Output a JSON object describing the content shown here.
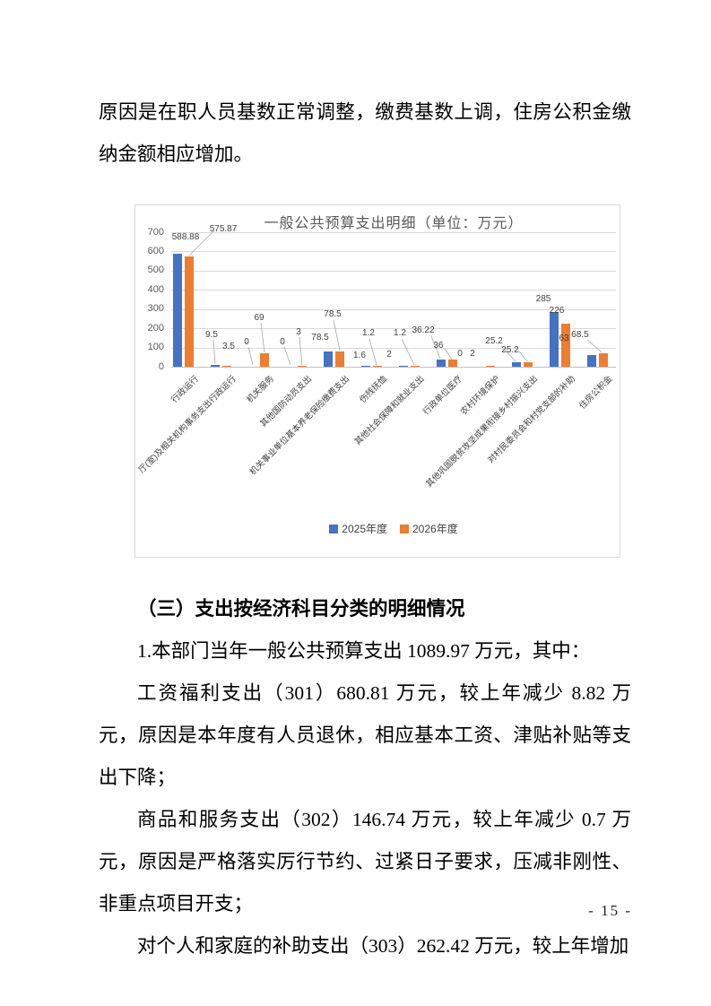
{
  "document": {
    "intro_paragraph": "原因是在职人员基数正常调整，缴费基数上调，住房公积金缴纳金额相应增加。",
    "section_heading": "（三）支出按经济科目分类的明细情况",
    "paragraphs": [
      "1.本部门当年一般公共预算支出 1089.97 万元，其中：",
      "工资福利支出（301）680.81 万元，较上年减少 8.82 万元，原因是本年度有人员退休，相应基本工资、津贴补贴等支出下降；",
      "商品和服务支出（302）146.74 万元，较上年减少 0.7 万元，原因是严格落实厉行节约、过紧日子要求，压减非刚性、非重点项目开支；",
      "对个人和家庭的补助支出（303）262.42 万元，较上年增加"
    ],
    "page_number": "- 15 -"
  },
  "chart_data": {
    "type": "bar",
    "title": "一般公共预算支出明细（单位：万元）",
    "categories": [
      "行政运行",
      "厅(室)及相关机构事务支出行政运行",
      "机关服务",
      "其他国防动员支出",
      "机关事业单位基本养老保险缴费支出",
      "伤残抚恤",
      "其他社会保障和就业支出",
      "行政单位医疗",
      "农村环境保护",
      "其他巩固脱贫攻坚成果衔接乡村振兴支出",
      "对村民委员会和村党支部的补助",
      "住房公积金"
    ],
    "series": [
      {
        "name": "2025年度",
        "color": "#4472C4",
        "values": [
          588.88,
          9.5,
          0,
          0,
          78.5,
          1.6,
          2,
          36.22,
          0,
          25.2,
          285,
          63
        ]
      },
      {
        "name": "2026年度",
        "color": "#ED7D31",
        "values": [
          575.87,
          3.5,
          69,
          3,
          78.5,
          1.2,
          1.2,
          36,
          2,
          25.2,
          226,
          68.5
        ]
      }
    ],
    "ylim": [
      0,
      700
    ],
    "ytick_step": 100,
    "grid": true,
    "legend_position": "bottom"
  }
}
